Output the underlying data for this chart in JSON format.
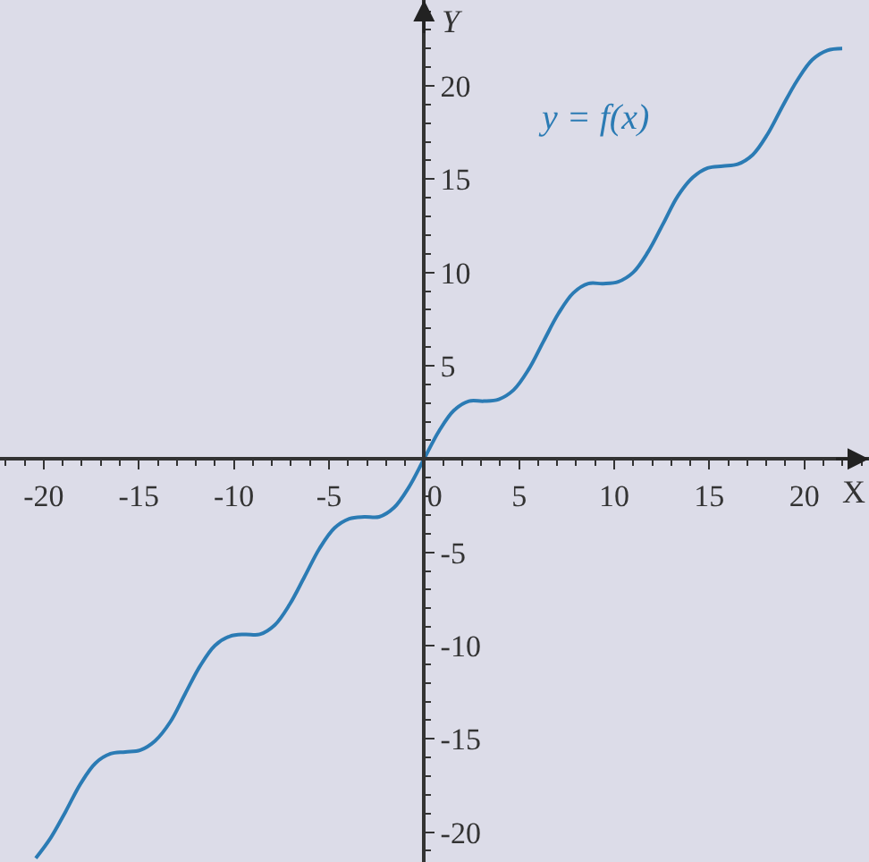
{
  "chart_data": {
    "type": "line",
    "xlabel": "X",
    "ylabel": "Y",
    "annotations": [
      "y = f(x)"
    ],
    "x": [
      -20.42,
      -19.63,
      -18.85,
      -18.06,
      -17.28,
      -16.49,
      -15.71,
      -14.92,
      -14.14,
      -13.35,
      -12.57,
      -11.78,
      -11.0,
      -10.21,
      -9.42,
      -8.64,
      -7.85,
      -7.07,
      -6.28,
      -5.5,
      -4.71,
      -3.93,
      -3.14,
      -2.36,
      -1.57,
      -0.79,
      0,
      0.79,
      1.57,
      2.36,
      3.14,
      3.93,
      4.71,
      5.5,
      6.28,
      7.07,
      7.85,
      8.64,
      9.42,
      10.21,
      11.0,
      11.78,
      12.57,
      13.35,
      14.14,
      14.92,
      15.71,
      16.49,
      17.28,
      18.06,
      18.85,
      19.63,
      20.42,
      21.21,
      21.99
    ],
    "series": [
      {
        "color": "#2b7bb4",
        "values": [
          -21.4,
          -20.3,
          -18.9,
          -17.4,
          -16.3,
          -15.8,
          -15.7,
          -15.6,
          -15.1,
          -14.1,
          -12.6,
          -11.1,
          -10.0,
          -9.5,
          -9.4,
          -9.4,
          -8.9,
          -7.8,
          -6.3,
          -4.8,
          -3.7,
          -3.2,
          -3.1,
          -3.1,
          -2.6,
          -1.5,
          0,
          1.5,
          2.6,
          3.1,
          3.1,
          3.2,
          3.7,
          4.8,
          6.3,
          7.8,
          8.9,
          9.4,
          9.4,
          9.5,
          10.0,
          11.1,
          12.6,
          14.1,
          15.1,
          15.6,
          15.7,
          15.8,
          16.3,
          17.4,
          18.9,
          20.3,
          21.4,
          21.9,
          22.0
        ]
      }
    ],
    "xlim": [
      -22.3,
      23.4
    ],
    "ylim": [
      -21.6,
      24.6
    ],
    "xticks": [
      -20,
      -15,
      -10,
      -5,
      0,
      5,
      10,
      15,
      20
    ],
    "yticks": [
      -20,
      -15,
      -10,
      -5,
      5,
      10,
      15,
      20
    ],
    "grid": false,
    "marker": "none",
    "line_style": "solid"
  }
}
